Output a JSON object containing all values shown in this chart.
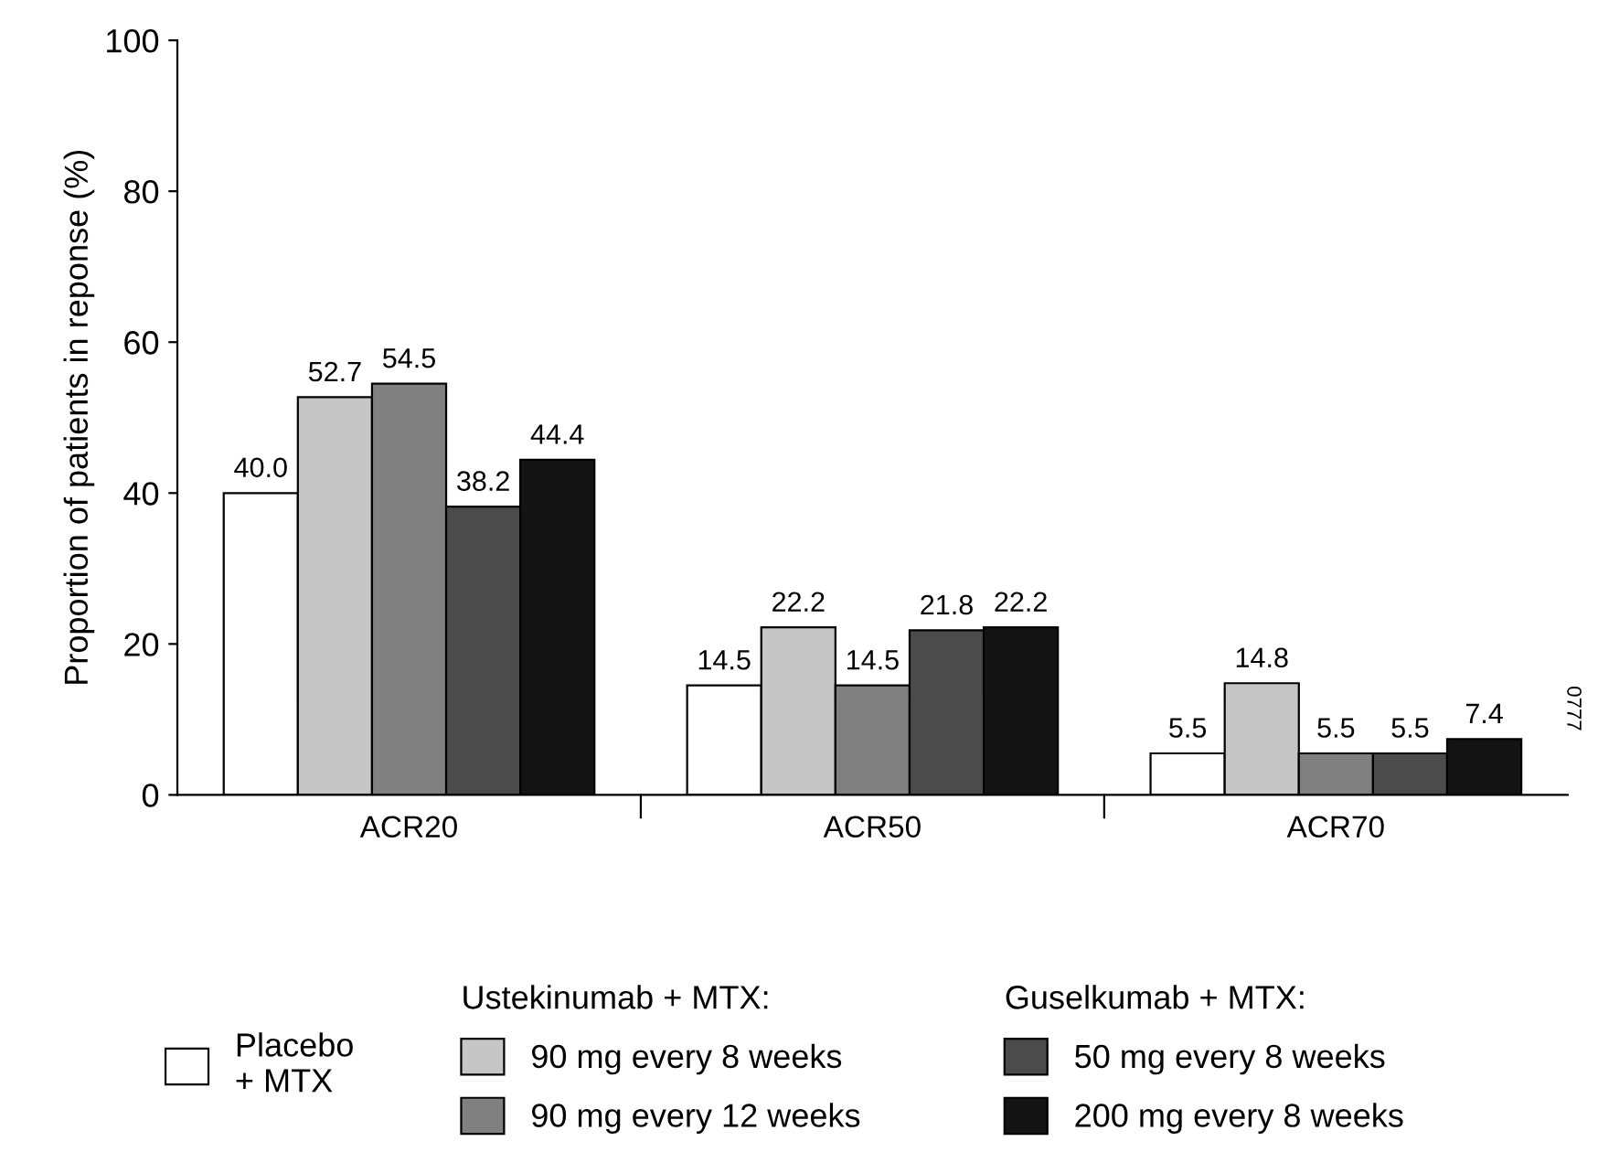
{
  "chart_data": {
    "type": "bar",
    "ylabel": "Proportion of patients in reponse (%)",
    "categories": [
      "ACR20",
      "ACR50",
      "ACR70"
    ],
    "series": [
      {
        "name": "Placebo\n+ MTX",
        "color": "#ffffff",
        "values": [
          40.0,
          14.5,
          5.5
        ],
        "value_labels": [
          "40.0",
          "14.5",
          "5.5"
        ]
      },
      {
        "name": "90 mg every 8 weeks",
        "color": "#c6c6c6",
        "values": [
          52.7,
          22.2,
          14.8
        ],
        "value_labels": [
          "52.7",
          "22.2",
          "14.8"
        ]
      },
      {
        "name": "90 mg every 12 weeks",
        "color": "#808080",
        "values": [
          54.5,
          14.5,
          5.5
        ],
        "value_labels": [
          "54.5",
          "14.5",
          "5.5"
        ]
      },
      {
        "name": "50 mg every 8 weeks",
        "color": "#4b4b4b",
        "values": [
          38.2,
          21.8,
          5.5
        ],
        "value_labels": [
          "38.2",
          "21.8",
          "5.5"
        ]
      },
      {
        "name": "200 mg every 8 weeks",
        "color": "#141414",
        "values": [
          44.4,
          22.2,
          7.4
        ],
        "value_labels": [
          "44.4",
          "22.2",
          "7.4"
        ]
      }
    ],
    "ylim": [
      0,
      100
    ],
    "yticks": [
      0,
      20,
      40,
      60,
      80,
      100
    ],
    "grid": false,
    "legend": "bottom",
    "annotations": [
      "Ustekinumab + MTX:",
      "Guselkumab + MTX:",
      "0777"
    ]
  }
}
